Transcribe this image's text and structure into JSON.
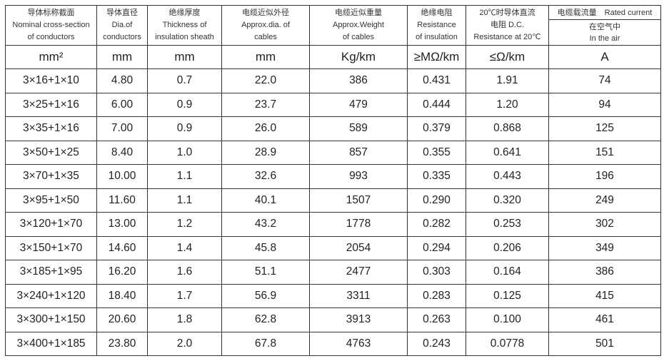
{
  "headers": [
    {
      "zh": "导体标称截面",
      "en1": "Nominal cross-section",
      "en2": "of conductors",
      "unit": "mm²"
    },
    {
      "zh": "导体直径",
      "en1": "Dia.of",
      "en2": "conductors",
      "unit": "mm"
    },
    {
      "zh": "绝缘厚度",
      "en1": "Thickness of",
      "en2": "insulation sheath",
      "unit": "mm"
    },
    {
      "zh": "电缆近似外径",
      "en1": "Approx.dia. of",
      "en2": "cables",
      "unit": "mm"
    },
    {
      "zh": "电缆近似重量",
      "en1": "Approx.Weight",
      "en2": "of cables",
      "unit": "Kg/km"
    },
    {
      "zh": "绝缘电阻",
      "en1": "Resistance",
      "en2": "of insulation",
      "unit": "≥MΩ/km"
    },
    {
      "zh": "20℃时导体直流",
      "en1": "电阻 D.C.",
      "en2": "Resistance at 20℃",
      "unit": "≤Ω/km"
    },
    {
      "zh": "电缆载流量　Rated current",
      "en1": "在空气中",
      "en2": "In the air",
      "unit": "A"
    }
  ],
  "rows": [
    [
      "3×16+1×10",
      "4.80",
      "0.7",
      "22.0",
      "386",
      "0.431",
      "1.91",
      "74"
    ],
    [
      "3×25+1×16",
      "6.00",
      "0.9",
      "23.7",
      "479",
      "0.444",
      "1.20",
      "94"
    ],
    [
      "3×35+1×16",
      "7.00",
      "0.9",
      "26.0",
      "589",
      "0.379",
      "0.868",
      "125"
    ],
    [
      "3×50+1×25",
      "8.40",
      "1.0",
      "28.9",
      "857",
      "0.355",
      "0.641",
      "151"
    ],
    [
      "3×70+1×35",
      "10.00",
      "1.1",
      "32.6",
      "993",
      "0.335",
      "0.443",
      "196"
    ],
    [
      "3×95+1×50",
      "11.60",
      "1.1",
      "40.1",
      "1507",
      "0.290",
      "0.320",
      "249"
    ],
    [
      "3×120+1×70",
      "13.00",
      "1.2",
      "43.2",
      "1778",
      "0.282",
      "0.253",
      "302"
    ],
    [
      "3×150+1×70",
      "14.60",
      "1.4",
      "45.8",
      "2054",
      "0.294",
      "0.206",
      "349"
    ],
    [
      "3×185+1×95",
      "16.20",
      "1.6",
      "51.1",
      "2477",
      "0.303",
      "0.164",
      "386"
    ],
    [
      "3×240+1×120",
      "18.40",
      "1.7",
      "56.9",
      "3311",
      "0.283",
      "0.125",
      "415"
    ],
    [
      "3×300+1×150",
      "20.60",
      "1.8",
      "62.8",
      "3913",
      "0.263",
      "0.100",
      "461"
    ],
    [
      "3×400+1×185",
      "23.80",
      "2.0",
      "67.8",
      "4763",
      "0.243",
      "0.0778",
      "501"
    ]
  ]
}
